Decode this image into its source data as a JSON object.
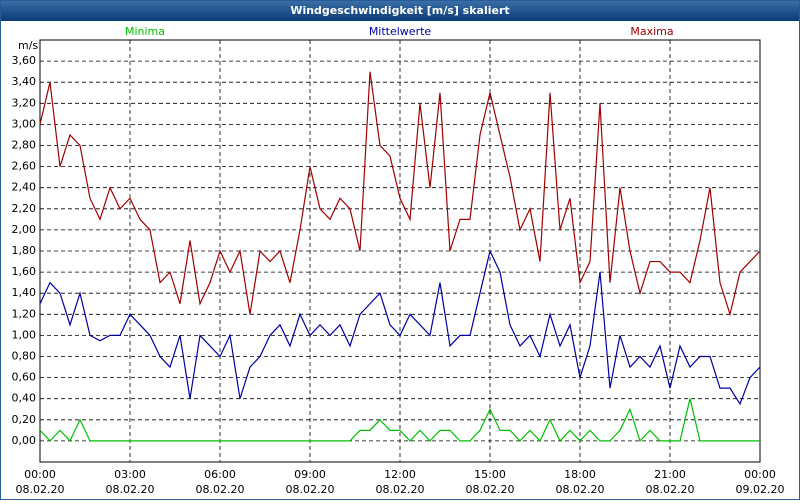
{
  "chart_data": {
    "type": "line",
    "title": "Windgeschwindigkeit [m/s] skaliert",
    "y_label": "m/s",
    "x": [
      0,
      20,
      40,
      60,
      80,
      100,
      120,
      140,
      160,
      180,
      200,
      220,
      240,
      260,
      280,
      300,
      320,
      340,
      360,
      380,
      400,
      420,
      440,
      460,
      480,
      500,
      520,
      540,
      560,
      580,
      600,
      620,
      640,
      660,
      680,
      700,
      720,
      740,
      760,
      780,
      800,
      820,
      840,
      860,
      880,
      900,
      920,
      940,
      960,
      980,
      1000,
      1020,
      1040,
      1060,
      1080,
      1100,
      1120,
      1140,
      1160,
      1180,
      1200,
      1220,
      1240,
      1260,
      1280,
      1300,
      1320,
      1340,
      1360,
      1380,
      1400,
      1420,
      1440
    ],
    "series": [
      {
        "name": "Minima",
        "color": "#00c000",
        "values": [
          0.1,
          0,
          0.1,
          0,
          0.2,
          0,
          0,
          0,
          0,
          0,
          0,
          0,
          0,
          0,
          0,
          0,
          0,
          0,
          0,
          0,
          0,
          0,
          0,
          0,
          0,
          0,
          0,
          0,
          0,
          0,
          0,
          0,
          0.1,
          0.1,
          0.2,
          0.1,
          0.1,
          0,
          0.1,
          0,
          0.1,
          0.1,
          0,
          0,
          0.1,
          0.3,
          0.1,
          0.1,
          0,
          0.1,
          0,
          0.2,
          0,
          0.1,
          0,
          0.1,
          0,
          0,
          0.1,
          0.3,
          0,
          0.1,
          0,
          0,
          0,
          0.4,
          0,
          0,
          0,
          0,
          0,
          0,
          0
        ]
      },
      {
        "name": "Mittelwerte",
        "color": "#0000a0",
        "values": [
          1.3,
          1.5,
          1.4,
          1.1,
          1.4,
          1.0,
          0.95,
          1.0,
          1.0,
          1.2,
          1.1,
          1.0,
          0.8,
          0.7,
          1.0,
          0.4,
          1.0,
          0.9,
          0.8,
          1.0,
          0.4,
          0.7,
          0.8,
          1.0,
          1.1,
          0.9,
          1.2,
          1.0,
          1.1,
          1.0,
          1.1,
          0.9,
          1.2,
          1.3,
          1.4,
          1.1,
          1.0,
          1.2,
          1.1,
          1.0,
          1.5,
          0.9,
          1.0,
          1.0,
          1.4,
          1.8,
          1.6,
          1.1,
          0.9,
          1.0,
          0.8,
          1.2,
          0.9,
          1.1,
          0.6,
          0.9,
          1.6,
          0.5,
          1.0,
          0.7,
          0.8,
          0.7,
          0.9,
          0.5,
          0.9,
          0.7,
          0.8,
          0.8,
          0.5,
          0.5,
          0.35,
          0.6,
          0.7
        ]
      },
      {
        "name": "Maxima",
        "color": "#a00000",
        "values": [
          3.0,
          3.4,
          2.6,
          2.9,
          2.8,
          2.3,
          2.1,
          2.4,
          2.2,
          2.3,
          2.1,
          2.0,
          1.5,
          1.6,
          1.3,
          1.9,
          1.3,
          1.5,
          1.8,
          1.6,
          1.8,
          1.2,
          1.8,
          1.7,
          1.8,
          1.5,
          2.0,
          2.6,
          2.2,
          2.1,
          2.3,
          2.2,
          1.8,
          3.5,
          2.8,
          2.7,
          2.3,
          2.1,
          3.2,
          2.4,
          3.3,
          1.8,
          2.1,
          2.1,
          2.9,
          3.3,
          2.9,
          2.5,
          2.0,
          2.2,
          1.7,
          3.3,
          2.0,
          2.3,
          1.5,
          1.7,
          3.2,
          1.5,
          2.4,
          1.8,
          1.4,
          1.7,
          1.7,
          1.6,
          1.6,
          1.5,
          1.9,
          2.4,
          1.5,
          1.2,
          1.6,
          1.7,
          1.8
        ]
      }
    ],
    "xlim": [
      0,
      1440
    ],
    "xticks": [
      {
        "value": 0,
        "label": "00:00",
        "date": "08.02.20"
      },
      {
        "value": 180,
        "label": "03:00",
        "date": "08.02.20"
      },
      {
        "value": 360,
        "label": "06:00",
        "date": "08.02.20"
      },
      {
        "value": 540,
        "label": "09:00",
        "date": "08.02.20"
      },
      {
        "value": 720,
        "label": "12:00",
        "date": "08.02.20"
      },
      {
        "value": 900,
        "label": "15:00",
        "date": "08.02.20"
      },
      {
        "value": 1080,
        "label": "18:00",
        "date": "08.02.20"
      },
      {
        "value": 1260,
        "label": "21:00",
        "date": "08.02.20"
      },
      {
        "value": 1440,
        "label": "00:00",
        "date": "09.02.20"
      }
    ],
    "ylim": [
      -0.2,
      3.8
    ],
    "yticks": [
      {
        "value": 0,
        "label": "0,00"
      },
      {
        "value": 0.2,
        "label": "0,20"
      },
      {
        "value": 0.4,
        "label": "0,40"
      },
      {
        "value": 0.6,
        "label": "0,60"
      },
      {
        "value": 0.8,
        "label": "0,80"
      },
      {
        "value": 1.0,
        "label": "1,00"
      },
      {
        "value": 1.2,
        "label": "1,20"
      },
      {
        "value": 1.4,
        "label": "1,40"
      },
      {
        "value": 1.6,
        "label": "1,60"
      },
      {
        "value": 1.8,
        "label": "1,80"
      },
      {
        "value": 2.0,
        "label": "2,00"
      },
      {
        "value": 2.2,
        "label": "2,20"
      },
      {
        "value": 2.4,
        "label": "2,40"
      },
      {
        "value": 2.6,
        "label": "2,60"
      },
      {
        "value": 2.8,
        "label": "2,80"
      },
      {
        "value": 3.0,
        "label": "3,00"
      },
      {
        "value": 3.2,
        "label": "3,20"
      },
      {
        "value": 3.4,
        "label": "3,40"
      },
      {
        "value": 3.6,
        "label": "3,60"
      }
    ],
    "grid": true
  }
}
